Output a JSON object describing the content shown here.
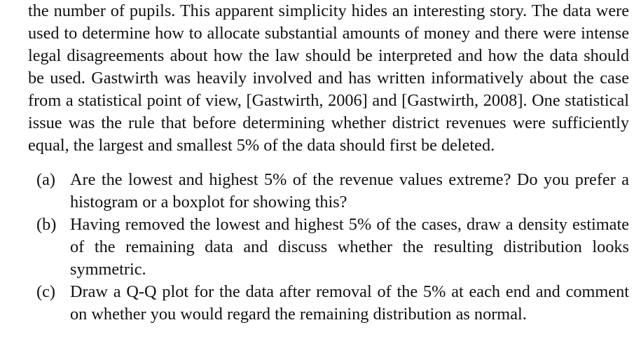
{
  "paragraph": "the number of pupils. This apparent simplicity hides an interesting story. The data were used to determine how to allocate substantial amounts of money and there were intense legal disagreements about how the law should be interpreted and how the data should be used. Gastwirth was heavily involved and has written informatively about the case from a statistical point of view, [Gastwirth, 2006] and [Gastwirth, 2008]. One statistical issue was the rule that before determining whether district revenues were sufficiently equal, the largest and smallest 5% of the data should first be deleted.",
  "items": [
    {
      "label": "(a)",
      "text": "Are the lowest and highest 5% of the revenue values extreme? Do you prefer a histogram or a boxplot for showing this?"
    },
    {
      "label": "(b)",
      "text": "Having removed the lowest and highest 5% of the cases, draw a density estimate of the remaining data and discuss whether the resulting distribution looks symmetric."
    },
    {
      "label": "(c)",
      "text": "Draw a Q-Q plot for the data after removal of the 5% at each end and comment on whether you would regard the remaining distribution as normal."
    }
  ]
}
